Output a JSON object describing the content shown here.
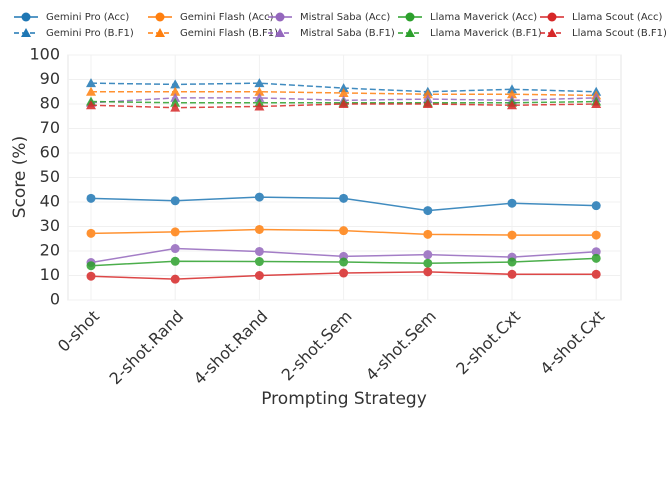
{
  "chart_data": {
    "type": "line",
    "x_label": "Prompting Strategy",
    "y_label": "Score (%)",
    "categories": [
      "0-shot",
      "2-shot.Rand",
      "4-shot.Rand",
      "2-shot.Sem",
      "4-shot.Sem",
      "2-shot.Cxt",
      "4-shot.Cxt"
    ],
    "ylim": [
      0,
      100
    ],
    "yticks": [
      0,
      10,
      20,
      30,
      40,
      50,
      60,
      70,
      80,
      90,
      100
    ],
    "grid": true,
    "series": [
      {
        "name": "Gemini Pro (Acc)",
        "color": "#1f77b4",
        "linestyle": "solid",
        "marker": "circle",
        "values": [
          41.5,
          40.5,
          42,
          41.5,
          36.5,
          39.5,
          38.5
        ]
      },
      {
        "name": "Gemini Pro (B.F1)",
        "color": "#1f77b4",
        "linestyle": "dashed",
        "marker": "triangle",
        "values": [
          88.5,
          88,
          88.5,
          86.5,
          85,
          86,
          85
        ]
      },
      {
        "name": "Gemini Flash (Acc)",
        "color": "#ff7f0e",
        "linestyle": "solid",
        "marker": "circle",
        "values": [
          27.2,
          27.8,
          28.8,
          28.3,
          26.8,
          26.5,
          26.5
        ]
      },
      {
        "name": "Gemini Flash (B.F1)",
        "color": "#ff7f0e",
        "linestyle": "dashed",
        "marker": "triangle",
        "values": [
          85,
          85,
          85,
          84.5,
          84,
          84,
          83.5
        ]
      },
      {
        "name": "Mistral Saba (Acc)",
        "color": "#9467bd",
        "linestyle": "solid",
        "marker": "circle",
        "values": [
          15.3,
          21,
          19.8,
          17.8,
          18.5,
          17.5,
          19.7
        ]
      },
      {
        "name": "Mistral Saba (B.F1)",
        "color": "#9467bd",
        "linestyle": "dashed",
        "marker": "triangle",
        "values": [
          80.5,
          82.5,
          82.5,
          81.5,
          82,
          81.5,
          82.5
        ]
      },
      {
        "name": "Llama Maverick (Acc)",
        "color": "#2ca02c",
        "linestyle": "solid",
        "marker": "circle",
        "values": [
          14,
          15.8,
          15.7,
          15.5,
          15,
          15.5,
          17
        ]
      },
      {
        "name": "Llama Maverick (B.F1)",
        "color": "#2ca02c",
        "linestyle": "dashed",
        "marker": "triangle",
        "values": [
          81,
          80.5,
          80.5,
          80.5,
          80.5,
          80.5,
          81
        ]
      },
      {
        "name": "Llama Scout (Acc)",
        "color": "#d62728",
        "linestyle": "solid",
        "marker": "circle",
        "values": [
          9.7,
          8.5,
          10,
          11,
          11.5,
          10.5,
          10.5
        ]
      },
      {
        "name": "Llama Scout (B.F1)",
        "color": "#d62728",
        "linestyle": "dashed",
        "marker": "triangle",
        "values": [
          79.5,
          78.5,
          79,
          80,
          80,
          79.5,
          80
        ]
      }
    ]
  }
}
